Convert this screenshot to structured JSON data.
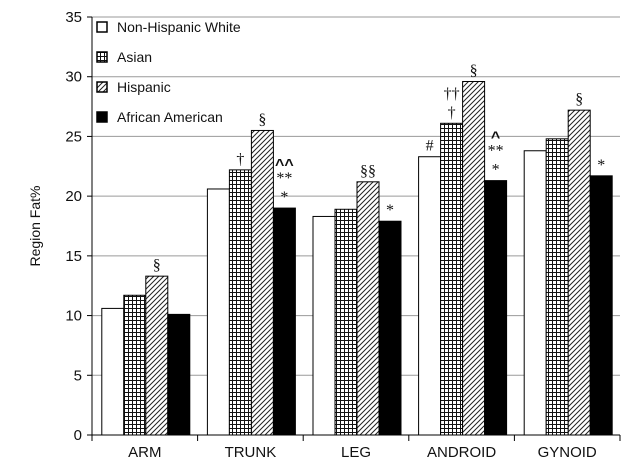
{
  "chart_data": {
    "type": "bar",
    "title": "",
    "xlabel": "",
    "ylabel": "Region Fat%",
    "ylim": [
      0,
      35
    ],
    "yticks": [
      0,
      5,
      10,
      15,
      20,
      25,
      30,
      35
    ],
    "grid": true,
    "legend_position": "top-left",
    "categories": [
      "ARM",
      "TRUNK",
      "LEG",
      "ANDROID",
      "GYNOID"
    ],
    "series": [
      {
        "name": "Non-Hispanic White",
        "pattern": "white",
        "values": [
          10.6,
          20.6,
          18.3,
          23.3,
          23.8
        ]
      },
      {
        "name": "Asian",
        "pattern": "grid",
        "values": [
          11.7,
          22.2,
          18.9,
          26.1,
          24.8
        ]
      },
      {
        "name": "Hispanic",
        "pattern": "diagonal",
        "values": [
          13.3,
          25.5,
          21.2,
          29.6,
          27.2
        ]
      },
      {
        "name": "African American",
        "pattern": "black",
        "values": [
          10.1,
          19.0,
          17.9,
          21.3,
          21.7
        ]
      }
    ],
    "annotations": [
      {
        "category": 0,
        "series": 2,
        "lines": [
          "§"
        ]
      },
      {
        "category": 1,
        "series": 1,
        "lines": [
          "†"
        ]
      },
      {
        "category": 1,
        "series": 2,
        "lines": [
          "§"
        ]
      },
      {
        "category": 1,
        "series": 3,
        "lines": [
          "^^",
          "**",
          "*"
        ]
      },
      {
        "category": 2,
        "series": 2,
        "lines": [
          "§§"
        ]
      },
      {
        "category": 2,
        "series": 3,
        "lines": [
          "*"
        ]
      },
      {
        "category": 3,
        "series": 0,
        "lines": [
          "#"
        ]
      },
      {
        "category": 3,
        "series": 1,
        "lines": [
          "††",
          "†"
        ]
      },
      {
        "category": 3,
        "series": 2,
        "lines": [
          "§"
        ]
      },
      {
        "category": 3,
        "series": 3,
        "lines": [
          "^",
          "**",
          "*"
        ]
      },
      {
        "category": 4,
        "series": 2,
        "lines": [
          "§"
        ]
      },
      {
        "category": 4,
        "series": 3,
        "lines": [
          "*"
        ]
      }
    ]
  }
}
